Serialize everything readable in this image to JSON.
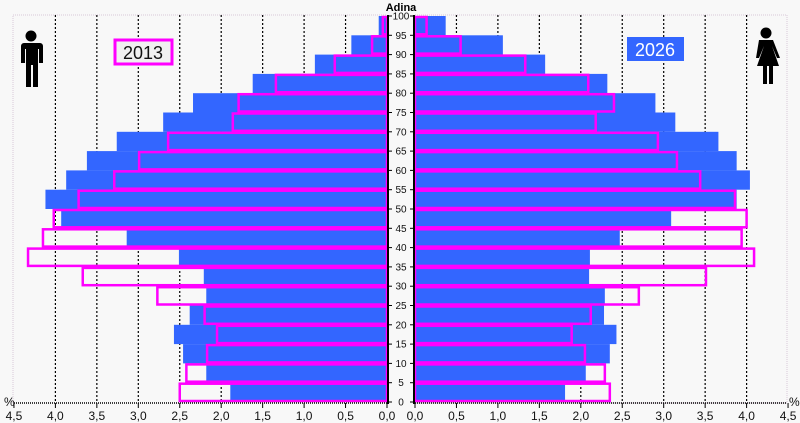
{
  "chart_data": {
    "type": "bar",
    "subtype": "population-pyramid",
    "title": "Adina",
    "unit_label": "%",
    "age_groups": [
      "0-4",
      "5-9",
      "10-14",
      "15-19",
      "20-24",
      "25-29",
      "30-34",
      "35-39",
      "40-44",
      "45-49",
      "50-54",
      "55-59",
      "60-64",
      "65-69",
      "70-74",
      "75-79",
      "80-84",
      "85-89",
      "90-94",
      "95-99"
    ],
    "age_tick_labels": [
      "0",
      "5",
      "10",
      "15",
      "20",
      "25",
      "30",
      "35",
      "40",
      "45",
      "50",
      "55",
      "60",
      "65",
      "70",
      "75",
      "80",
      "85",
      "90",
      "95",
      "100"
    ],
    "x_tick_labels": [
      "4,5",
      "4,0",
      "3,5",
      "3,0",
      "2,5",
      "2,0",
      "1,5",
      "1,0",
      "0,5",
      "0,0"
    ],
    "xlim": [
      0,
      4.5
    ],
    "grid": "vertical dotted every 0.5",
    "legend": [
      {
        "label": "2013",
        "style": "magenta outline",
        "position": "top-left"
      },
      {
        "label": "2026",
        "style": "blue fill",
        "position": "top-right"
      }
    ],
    "left_side": "male",
    "right_side": "female",
    "series": [
      {
        "name": "2026 male",
        "values": [
          1.89,
          2.18,
          2.46,
          2.57,
          2.38,
          2.18,
          2.21,
          2.51,
          3.14,
          3.93,
          4.12,
          3.87,
          3.62,
          3.26,
          2.7,
          2.34,
          1.62,
          0.87,
          0.43,
          0.1
        ]
      },
      {
        "name": "2026 female",
        "values": [
          1.81,
          2.06,
          2.35,
          2.43,
          2.28,
          2.29,
          2.1,
          2.11,
          2.47,
          3.09,
          3.88,
          4.04,
          3.88,
          3.66,
          3.14,
          2.9,
          2.32,
          1.57,
          1.06,
          0.37
        ]
      },
      {
        "name": "2013 male",
        "values": [
          2.5,
          2.42,
          2.17,
          2.05,
          2.2,
          2.77,
          3.67,
          4.33,
          4.15,
          4.02,
          3.72,
          3.29,
          2.99,
          2.64,
          1.86,
          1.79,
          1.34,
          0.63,
          0.18,
          0.05
        ]
      },
      {
        "name": "2013 female",
        "values": [
          2.35,
          2.29,
          2.05,
          1.89,
          2.12,
          2.7,
          3.51,
          4.09,
          3.94,
          4.0,
          3.86,
          3.44,
          3.16,
          2.93,
          2.18,
          2.4,
          2.09,
          1.33,
          0.55,
          0.14
        ]
      }
    ]
  },
  "colors": {
    "fill_2026": "#3366ff",
    "outline_2013": "#ff00ff",
    "background": "#f8f8f8",
    "grid": "#000000"
  },
  "labels": {
    "title": "Adina",
    "legend_2013": "2013",
    "legend_2026": "2026",
    "percent_left": "%",
    "percent_right": "%"
  },
  "icons": {
    "male": "male-figure-icon",
    "female": "female-figure-icon"
  }
}
